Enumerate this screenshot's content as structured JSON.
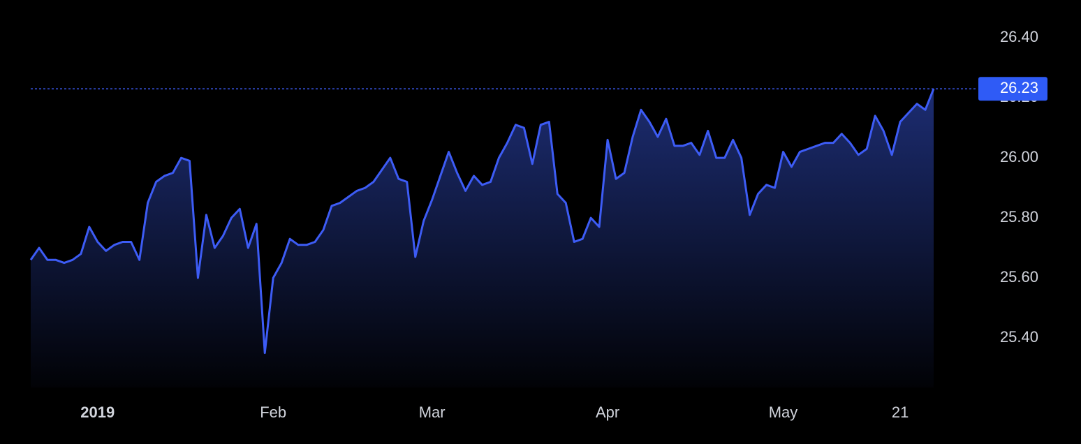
{
  "chart_data": {
    "type": "area",
    "color": "#3d5cf5",
    "categories": [
      null,
      null,
      null,
      null,
      null,
      null,
      null,
      null,
      "2019",
      null,
      null,
      null,
      null,
      null,
      null,
      null,
      null,
      null,
      null,
      null,
      null,
      null,
      null,
      null,
      null,
      null,
      null,
      null,
      null,
      "Feb",
      null,
      null,
      null,
      null,
      null,
      null,
      null,
      null,
      null,
      null,
      null,
      null,
      null,
      null,
      null,
      null,
      null,
      null,
      "Mar",
      null,
      null,
      null,
      null,
      null,
      null,
      null,
      null,
      null,
      null,
      null,
      null,
      null,
      null,
      null,
      null,
      null,
      null,
      null,
      null,
      "Apr",
      null,
      null,
      null,
      null,
      null,
      null,
      null,
      null,
      null,
      null,
      null,
      null,
      null,
      null,
      null,
      null,
      null,
      null,
      null,
      null,
      "May",
      null,
      null,
      null,
      null,
      null,
      null,
      null,
      null,
      null,
      null,
      null,
      null,
      null,
      "21",
      null,
      null,
      null,
      null
    ],
    "values": [
      25.66,
      25.7,
      25.66,
      25.66,
      25.65,
      25.66,
      25.68,
      25.77,
      25.72,
      25.69,
      25.71,
      25.72,
      25.72,
      25.66,
      25.85,
      25.92,
      25.94,
      25.95,
      26.0,
      25.99,
      25.6,
      25.81,
      25.7,
      25.74,
      25.8,
      25.83,
      25.7,
      25.78,
      25.35,
      25.6,
      25.65,
      25.73,
      25.71,
      25.71,
      25.72,
      25.76,
      25.84,
      25.85,
      25.87,
      25.89,
      25.9,
      25.92,
      25.96,
      26.0,
      25.93,
      25.92,
      25.67,
      25.79,
      25.86,
      25.94,
      26.02,
      25.95,
      25.89,
      25.94,
      25.91,
      25.92,
      26.0,
      26.05,
      26.11,
      26.1,
      25.98,
      26.11,
      26.12,
      25.88,
      25.85,
      25.72,
      25.73,
      25.8,
      25.77,
      26.06,
      25.93,
      25.95,
      26.07,
      26.16,
      26.12,
      26.07,
      26.13,
      26.04,
      26.04,
      26.05,
      26.01,
      26.09,
      26.0,
      26.0,
      26.06,
      26.0,
      25.81,
      25.88,
      25.91,
      25.9,
      26.02,
      25.97,
      26.02,
      26.03,
      26.04,
      26.05,
      26.05,
      26.08,
      26.05,
      26.01,
      26.03,
      26.14,
      26.09,
      26.01,
      26.12,
      26.15,
      26.18,
      26.16,
      26.23
    ],
    "ylim": [
      25.235,
      26.526
    ],
    "yticks": [
      {
        "value": 25.4,
        "label": "25.40"
      },
      {
        "value": 25.6,
        "label": "25.60"
      },
      {
        "value": 25.8,
        "label": "25.80"
      },
      {
        "value": 26.0,
        "label": "26.00"
      },
      {
        "value": 26.2,
        "label": "26.20"
      },
      {
        "value": 26.4,
        "label": "26.40"
      }
    ]
  }
}
